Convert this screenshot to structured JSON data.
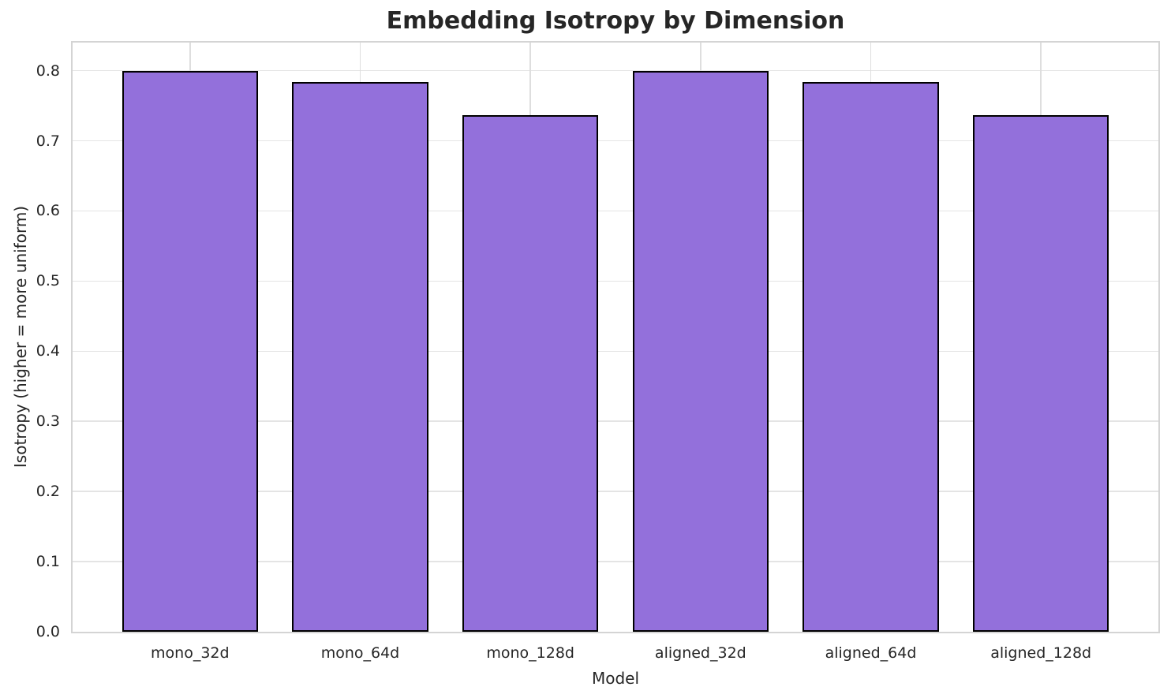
{
  "chart_data": {
    "type": "bar",
    "title": "Embedding Isotropy by Dimension",
    "xlabel": "Model",
    "ylabel": "Isotropy (higher = more uniform)",
    "categories": [
      "mono_32d",
      "mono_64d",
      "mono_128d",
      "aligned_32d",
      "aligned_64d",
      "aligned_128d"
    ],
    "values": [
      0.799,
      0.784,
      0.737,
      0.799,
      0.784,
      0.737
    ],
    "ylim": [
      0,
      0.84
    ],
    "yticks": [
      0.0,
      0.1,
      0.2,
      0.3,
      0.4,
      0.5,
      0.6,
      0.7,
      0.8
    ],
    "ytick_labels": [
      "0.0",
      "0.1",
      "0.2",
      "0.3",
      "0.4",
      "0.5",
      "0.6",
      "0.7",
      "0.8"
    ],
    "grid": true,
    "legend": false,
    "colors": {
      "bar_fill": "#9370DB",
      "bar_edge": "#000000",
      "grid_line": "#e4e4e4",
      "spine": "#d4d4d4",
      "text": "#262626",
      "background": "#ffffff"
    }
  }
}
